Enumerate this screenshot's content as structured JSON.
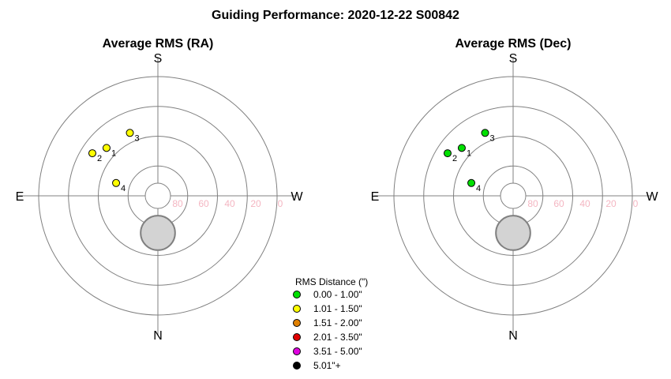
{
  "title": "Guiding Performance: 2020-12-22 S00842",
  "colors": {
    "ring": "#808080",
    "axis": "#808080",
    "altitude_label": "#f4b6c2",
    "moon_fill": "#d3d3d3",
    "moon_stroke": "#808080"
  },
  "legend": {
    "title": "RMS Distance (\")",
    "entries": [
      {
        "label": "0.00 - 1.00\"",
        "color": "#00e000"
      },
      {
        "label": "1.01 - 1.50\"",
        "color": "#ffff00"
      },
      {
        "label": "1.51 - 2.00\"",
        "color": "#e08000"
      },
      {
        "label": "2.01 - 3.50\"",
        "color": "#e00000"
      },
      {
        "label": "3.51 - 5.00\"",
        "color": "#e000e0"
      },
      {
        "label": "5.01\"+",
        "color": "#000000"
      }
    ]
  },
  "chart_data": [
    {
      "type": "scatter",
      "projection": "polar-sky",
      "title": "Average RMS (RA)",
      "compass": {
        "top": "S",
        "bottom": "N",
        "left": "E",
        "right": "W"
      },
      "altitude_ticks": [
        "80",
        "60",
        "40",
        "20",
        "0"
      ],
      "altitude_rings": [
        80,
        60,
        40,
        20,
        0
      ],
      "moon": {
        "azimuth_deg": 0,
        "altitude_deg": 62,
        "radius_deg": 13
      },
      "points": [
        {
          "label": "1",
          "azimuth_deg": 133,
          "altitude_deg": 37,
          "color": "#ffff00"
        },
        {
          "label": "2",
          "azimuth_deg": 123,
          "altitude_deg": 31,
          "color": "#ffff00"
        },
        {
          "label": "3",
          "azimuth_deg": 156,
          "altitude_deg": 38,
          "color": "#ffff00"
        },
        {
          "label": "4",
          "azimuth_deg": 107,
          "altitude_deg": 57,
          "color": "#ffff00"
        }
      ]
    },
    {
      "type": "scatter",
      "projection": "polar-sky",
      "title": "Average RMS (Dec)",
      "compass": {
        "top": "S",
        "bottom": "N",
        "left": "E",
        "right": "W"
      },
      "altitude_ticks": [
        "80",
        "60",
        "40",
        "20",
        "0"
      ],
      "altitude_rings": [
        80,
        60,
        40,
        20,
        0
      ],
      "moon": {
        "azimuth_deg": 0,
        "altitude_deg": 62,
        "radius_deg": 13
      },
      "points": [
        {
          "label": "1",
          "azimuth_deg": 133,
          "altitude_deg": 37,
          "color": "#00e000"
        },
        {
          "label": "2",
          "azimuth_deg": 123,
          "altitude_deg": 31,
          "color": "#00e000"
        },
        {
          "label": "3",
          "azimuth_deg": 156,
          "altitude_deg": 38,
          "color": "#00e000"
        },
        {
          "label": "4",
          "azimuth_deg": 107,
          "altitude_deg": 57,
          "color": "#00e000"
        }
      ]
    }
  ]
}
